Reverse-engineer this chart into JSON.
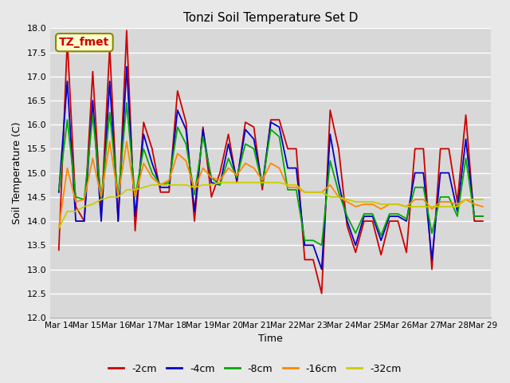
{
  "title": "Tonzi Soil Temperature Set D",
  "xlabel": "Time",
  "ylabel": "Soil Temperature (C)",
  "ylim": [
    12.0,
    18.0
  ],
  "yticks": [
    12.0,
    12.5,
    13.0,
    13.5,
    14.0,
    14.5,
    15.0,
    15.5,
    16.0,
    16.5,
    17.0,
    17.5,
    18.0
  ],
  "xtick_labels": [
    "Mar 14",
    "Mar 15",
    "Mar 16",
    "Mar 17",
    "Mar 18",
    "Mar 19",
    "Mar 20",
    "Mar 21",
    "Mar 22",
    "Mar 23",
    "Mar 24",
    "Mar 25",
    "Mar 26",
    "Mar 27",
    "Mar 28",
    "Mar 29"
  ],
  "legend_label": "TZ_fmet",
  "legend_entries": [
    "-2cm",
    "-4cm",
    "-8cm",
    "-16cm",
    "-32cm"
  ],
  "line_colors": [
    "#cc0000",
    "#0000cc",
    "#00aa00",
    "#ff8800",
    "#cccc00"
  ],
  "fig_facecolor": "#e8e8e8",
  "ax_facecolor": "#d8d8d8",
  "grid_color": "#ffffff",
  "series_neg2cm": [
    13.4,
    17.75,
    14.3,
    14.0,
    17.1,
    14.15,
    17.6,
    14.0,
    17.95,
    13.8,
    16.05,
    15.5,
    14.6,
    14.6,
    16.7,
    16.05,
    14.0,
    15.95,
    14.5,
    15.0,
    15.8,
    14.8,
    16.05,
    15.95,
    14.65,
    16.1,
    16.1,
    15.5,
    15.5,
    13.2,
    13.2,
    12.5,
    16.3,
    15.5,
    13.9,
    13.35,
    14.0,
    14.0,
    13.3,
    14.0,
    14.0,
    13.35,
    15.5,
    15.5,
    13.0,
    15.5,
    15.5,
    14.4,
    16.2,
    14.0,
    14.0
  ],
  "series_neg4cm": [
    14.6,
    16.9,
    14.0,
    14.0,
    16.5,
    14.0,
    16.9,
    14.0,
    17.2,
    14.1,
    15.8,
    15.2,
    14.7,
    14.7,
    16.3,
    15.9,
    14.2,
    15.9,
    14.8,
    14.75,
    15.6,
    14.85,
    15.9,
    15.7,
    14.75,
    16.05,
    15.95,
    15.1,
    15.1,
    13.5,
    13.5,
    13.0,
    15.8,
    14.8,
    14.0,
    13.5,
    14.1,
    14.1,
    13.6,
    14.1,
    14.1,
    14.0,
    15.0,
    15.0,
    13.2,
    15.0,
    15.0,
    14.2,
    15.7,
    14.1,
    14.1
  ],
  "series_neg8cm": [
    14.65,
    16.1,
    14.5,
    14.45,
    16.2,
    14.45,
    16.25,
    14.5,
    16.45,
    14.5,
    15.5,
    15.0,
    14.75,
    14.8,
    15.95,
    15.6,
    14.55,
    15.75,
    14.9,
    14.75,
    15.3,
    14.9,
    15.6,
    15.5,
    14.75,
    15.9,
    15.75,
    14.65,
    14.65,
    13.6,
    13.6,
    13.5,
    15.25,
    14.6,
    14.1,
    13.75,
    14.15,
    14.15,
    13.7,
    14.15,
    14.15,
    14.05,
    14.7,
    14.7,
    13.75,
    14.5,
    14.5,
    14.1,
    15.3,
    14.1,
    14.1
  ],
  "series_neg16cm": [
    13.85,
    15.1,
    14.4,
    14.45,
    15.3,
    14.5,
    15.65,
    14.5,
    15.65,
    14.5,
    15.2,
    14.9,
    14.75,
    14.85,
    15.4,
    15.25,
    14.65,
    15.1,
    14.9,
    14.85,
    15.1,
    14.95,
    15.2,
    15.1,
    14.85,
    15.2,
    15.1,
    14.7,
    14.7,
    14.6,
    14.6,
    14.6,
    14.75,
    14.5,
    14.4,
    14.3,
    14.35,
    14.35,
    14.25,
    14.35,
    14.35,
    14.3,
    14.45,
    14.45,
    14.25,
    14.4,
    14.4,
    14.35,
    14.45,
    14.35,
    14.3
  ],
  "series_neg32cm": [
    13.85,
    14.2,
    14.2,
    14.3,
    14.35,
    14.45,
    14.5,
    14.5,
    14.65,
    14.65,
    14.7,
    14.75,
    14.75,
    14.75,
    14.75,
    14.75,
    14.7,
    14.75,
    14.75,
    14.8,
    14.8,
    14.8,
    14.8,
    14.8,
    14.8,
    14.8,
    14.8,
    14.75,
    14.75,
    14.6,
    14.6,
    14.6,
    14.5,
    14.5,
    14.45,
    14.4,
    14.4,
    14.4,
    14.35,
    14.35,
    14.35,
    14.3,
    14.3,
    14.3,
    14.3,
    14.3,
    14.3,
    14.3,
    14.45,
    14.45,
    14.45
  ]
}
